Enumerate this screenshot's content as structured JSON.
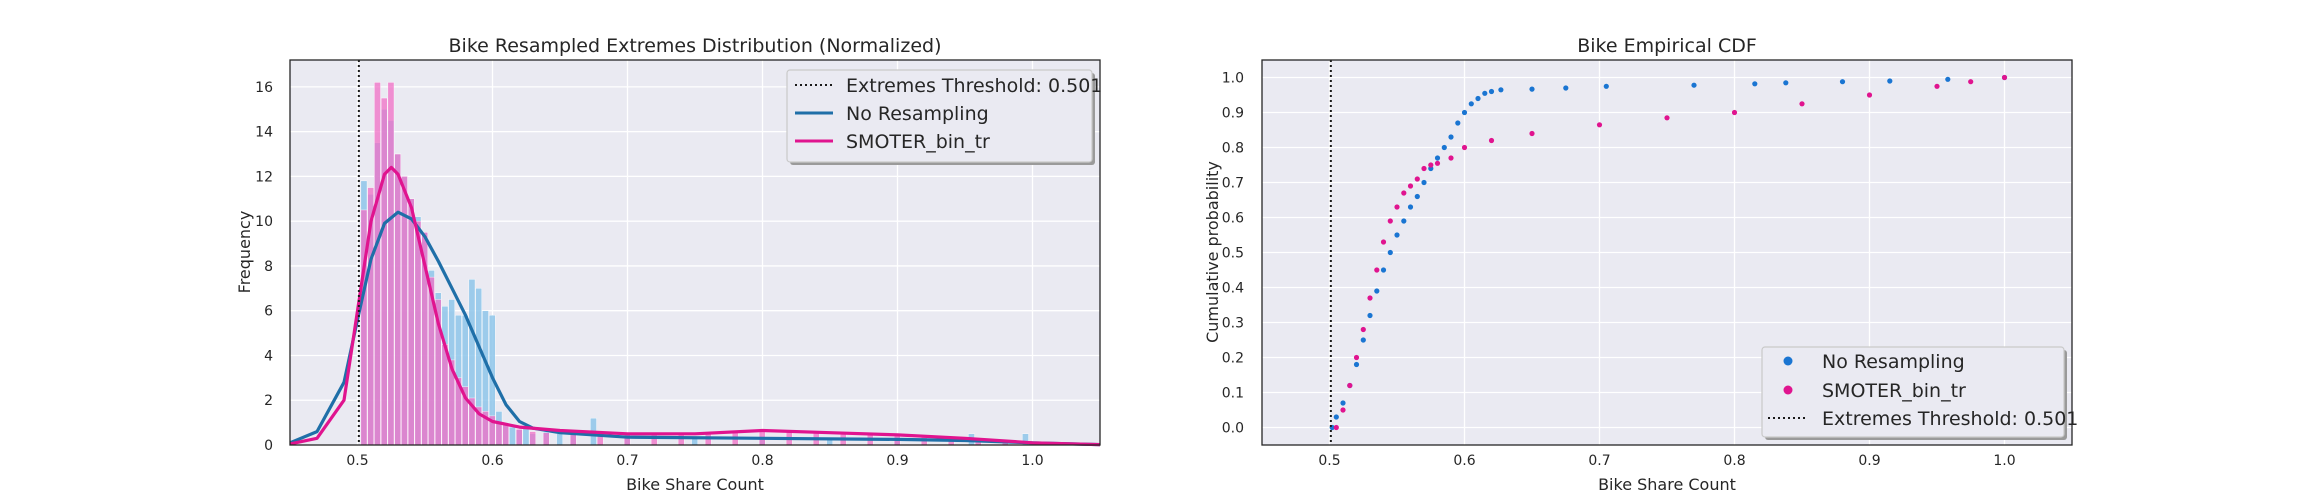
{
  "chart_data": [
    {
      "type": "histogram+kde",
      "title": "Bike Resampled Extremes Distribution (Normalized)",
      "xlabel": "Bike Share Count",
      "ylabel": "Frequency",
      "xlim": [
        0.45,
        1.05
      ],
      "ylim": [
        0,
        17.2
      ],
      "xticks": [
        "0.5",
        "0.6",
        "0.7",
        "0.8",
        "0.9",
        "1.0"
      ],
      "yticks": [
        "0",
        "2",
        "4",
        "6",
        "8",
        "10",
        "12",
        "14",
        "16"
      ],
      "threshold": 0.501,
      "grid": true,
      "legend_position": "top-right",
      "legend": [
        "Extremes Threshold: 0.501",
        "No Resampling",
        "SMOTER_bin_tr"
      ],
      "series": [
        {
          "name": "No Resampling",
          "color": "#1f6fa8",
          "hist_color": "#8ec6ea",
          "hist_bins": [
            [
              0.505,
              11.8
            ],
            [
              0.51,
              11.2
            ],
            [
              0.515,
              13.5
            ],
            [
              0.52,
              15.0
            ],
            [
              0.525,
              14.5
            ],
            [
              0.53,
              13.0
            ],
            [
              0.535,
              12.0
            ],
            [
              0.54,
              11.0
            ],
            [
              0.545,
              10.2
            ],
            [
              0.55,
              9.5
            ],
            [
              0.555,
              7.8
            ],
            [
              0.56,
              6.8
            ],
            [
              0.565,
              6.2
            ],
            [
              0.57,
              6.5
            ],
            [
              0.575,
              5.8
            ],
            [
              0.58,
              5.8
            ],
            [
              0.585,
              7.4
            ],
            [
              0.59,
              7.0
            ],
            [
              0.595,
              6.0
            ],
            [
              0.6,
              5.8
            ],
            [
              0.605,
              1.5
            ],
            [
              0.61,
              1.0
            ],
            [
              0.615,
              0.8
            ],
            [
              0.62,
              0.7
            ],
            [
              0.625,
              0.8
            ],
            [
              0.63,
              0.5
            ],
            [
              0.64,
              0.6
            ],
            [
              0.65,
              0.5
            ],
            [
              0.66,
              0.5
            ],
            [
              0.675,
              1.2
            ],
            [
              0.7,
              0.5
            ],
            [
              0.75,
              0.3
            ],
            [
              0.8,
              0.3
            ],
            [
              0.85,
              0.3
            ],
            [
              0.9,
              0.3
            ],
            [
              0.955,
              0.5
            ],
            [
              0.995,
              0.5
            ]
          ],
          "kde": [
            [
              0.45,
              0.1
            ],
            [
              0.47,
              0.6
            ],
            [
              0.49,
              2.8
            ],
            [
              0.5,
              5.6
            ],
            [
              0.51,
              8.3
            ],
            [
              0.52,
              9.9
            ],
            [
              0.53,
              10.4
            ],
            [
              0.54,
              10.1
            ],
            [
              0.55,
              9.3
            ],
            [
              0.56,
              8.2
            ],
            [
              0.57,
              7.0
            ],
            [
              0.58,
              5.8
            ],
            [
              0.59,
              4.4
            ],
            [
              0.6,
              3.0
            ],
            [
              0.61,
              1.8
            ],
            [
              0.62,
              1.05
            ],
            [
              0.63,
              0.75
            ],
            [
              0.65,
              0.55
            ],
            [
              0.7,
              0.35
            ],
            [
              0.8,
              0.3
            ],
            [
              0.9,
              0.25
            ],
            [
              0.95,
              0.2
            ],
            [
              1.0,
              0.1
            ],
            [
              1.05,
              0.02
            ]
          ]
        },
        {
          "name": "SMOTER_bin_tr",
          "color": "#e0148f",
          "hist_color": "#f06fc6",
          "hist_bins": [
            [
              0.505,
              10.5
            ],
            [
              0.51,
              11.5
            ],
            [
              0.515,
              16.2
            ],
            [
              0.52,
              15.5
            ],
            [
              0.525,
              16.2
            ],
            [
              0.53,
              13.0
            ],
            [
              0.535,
              12.0
            ],
            [
              0.54,
              11.0
            ],
            [
              0.545,
              10.0
            ],
            [
              0.55,
              9.5
            ],
            [
              0.555,
              7.5
            ],
            [
              0.56,
              6.5
            ],
            [
              0.565,
              4.5
            ],
            [
              0.57,
              3.8
            ],
            [
              0.575,
              3.0
            ],
            [
              0.58,
              2.6
            ],
            [
              0.585,
              2.1
            ],
            [
              0.59,
              1.7
            ],
            [
              0.595,
              1.5
            ],
            [
              0.6,
              1.3
            ],
            [
              0.605,
              1.0
            ],
            [
              0.61,
              0.9
            ],
            [
              0.62,
              0.7
            ],
            [
              0.63,
              0.6
            ],
            [
              0.64,
              0.55
            ],
            [
              0.66,
              0.5
            ],
            [
              0.68,
              0.45
            ],
            [
              0.7,
              0.45
            ],
            [
              0.72,
              0.45
            ],
            [
              0.74,
              0.5
            ],
            [
              0.76,
              0.55
            ],
            [
              0.78,
              0.6
            ],
            [
              0.8,
              0.65
            ],
            [
              0.82,
              0.6
            ],
            [
              0.84,
              0.55
            ],
            [
              0.86,
              0.5
            ],
            [
              0.88,
              0.45
            ],
            [
              0.9,
              0.45
            ],
            [
              0.92,
              0.4
            ],
            [
              0.94,
              0.3
            ],
            [
              0.96,
              0.25
            ],
            [
              0.98,
              0.2
            ],
            [
              1.0,
              0.1
            ]
          ],
          "kde": [
            [
              0.45,
              0.05
            ],
            [
              0.47,
              0.3
            ],
            [
              0.49,
              2.0
            ],
            [
              0.5,
              6.0
            ],
            [
              0.51,
              10.0
            ],
            [
              0.52,
              12.1
            ],
            [
              0.525,
              12.4
            ],
            [
              0.53,
              12.1
            ],
            [
              0.54,
              10.6
            ],
            [
              0.55,
              8.0
            ],
            [
              0.56,
              5.4
            ],
            [
              0.57,
              3.4
            ],
            [
              0.58,
              2.1
            ],
            [
              0.59,
              1.4
            ],
            [
              0.6,
              1.05
            ],
            [
              0.62,
              0.8
            ],
            [
              0.65,
              0.65
            ],
            [
              0.7,
              0.5
            ],
            [
              0.75,
              0.5
            ],
            [
              0.8,
              0.65
            ],
            [
              0.85,
              0.55
            ],
            [
              0.9,
              0.45
            ],
            [
              0.95,
              0.3
            ],
            [
              1.0,
              0.1
            ],
            [
              1.05,
              0.02
            ]
          ]
        }
      ]
    },
    {
      "type": "scatter",
      "title": "Bike Empirical CDF",
      "xlabel": "Bike Share Count",
      "ylabel": "Cumulative probability",
      "xlim": [
        0.45,
        1.05
      ],
      "ylim": [
        -0.05,
        1.05
      ],
      "xticks": [
        "0.5",
        "0.6",
        "0.7",
        "0.8",
        "0.9",
        "1.0"
      ],
      "yticks": [
        "0.0",
        "0.1",
        "0.2",
        "0.3",
        "0.4",
        "0.5",
        "0.6",
        "0.7",
        "0.8",
        "0.9",
        "1.0"
      ],
      "threshold": 0.501,
      "grid": true,
      "legend_position": "bottom-right",
      "legend": [
        "No Resampling",
        "SMOTER_bin_tr",
        "Extremes Threshold: 0.501"
      ],
      "series": [
        {
          "name": "No Resampling",
          "color": "#1a75d2",
          "points": [
            [
              0.502,
              0.0
            ],
            [
              0.505,
              0.03
            ],
            [
              0.51,
              0.07
            ],
            [
              0.515,
              0.12
            ],
            [
              0.52,
              0.18
            ],
            [
              0.525,
              0.25
            ],
            [
              0.53,
              0.32
            ],
            [
              0.535,
              0.39
            ],
            [
              0.54,
              0.45
            ],
            [
              0.545,
              0.5
            ],
            [
              0.55,
              0.55
            ],
            [
              0.555,
              0.59
            ],
            [
              0.56,
              0.63
            ],
            [
              0.565,
              0.66
            ],
            [
              0.57,
              0.7
            ],
            [
              0.575,
              0.74
            ],
            [
              0.58,
              0.77
            ],
            [
              0.585,
              0.8
            ],
            [
              0.59,
              0.83
            ],
            [
              0.595,
              0.87
            ],
            [
              0.6,
              0.9
            ],
            [
              0.605,
              0.925
            ],
            [
              0.61,
              0.94
            ],
            [
              0.615,
              0.955
            ],
            [
              0.62,
              0.96
            ],
            [
              0.627,
              0.965
            ],
            [
              0.65,
              0.967
            ],
            [
              0.675,
              0.97
            ],
            [
              0.705,
              0.975
            ],
            [
              0.77,
              0.978
            ],
            [
              0.815,
              0.982
            ],
            [
              0.838,
              0.985
            ],
            [
              0.88,
              0.988
            ],
            [
              0.915,
              0.99
            ],
            [
              0.958,
              0.995
            ],
            [
              1.0,
              1.0
            ]
          ]
        },
        {
          "name": "SMOTER_bin_tr",
          "color": "#e0148f",
          "points": [
            [
              0.505,
              0.0
            ],
            [
              0.51,
              0.05
            ],
            [
              0.515,
              0.12
            ],
            [
              0.52,
              0.2
            ],
            [
              0.525,
              0.28
            ],
            [
              0.53,
              0.37
            ],
            [
              0.535,
              0.45
            ],
            [
              0.54,
              0.53
            ],
            [
              0.545,
              0.59
            ],
            [
              0.55,
              0.63
            ],
            [
              0.555,
              0.67
            ],
            [
              0.56,
              0.69
            ],
            [
              0.565,
              0.71
            ],
            [
              0.57,
              0.74
            ],
            [
              0.575,
              0.75
            ],
            [
              0.58,
              0.755
            ],
            [
              0.59,
              0.77
            ],
            [
              0.6,
              0.8
            ],
            [
              0.62,
              0.82
            ],
            [
              0.65,
              0.84
            ],
            [
              0.7,
              0.865
            ],
            [
              0.75,
              0.885
            ],
            [
              0.8,
              0.9
            ],
            [
              0.85,
              0.925
            ],
            [
              0.9,
              0.95
            ],
            [
              0.95,
              0.975
            ],
            [
              0.975,
              0.988
            ],
            [
              1.0,
              1.0
            ]
          ]
        }
      ]
    }
  ]
}
